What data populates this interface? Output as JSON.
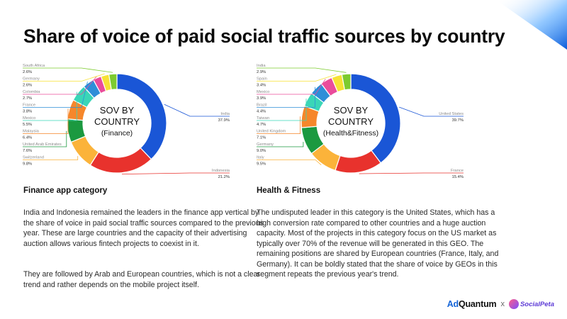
{
  "page": {
    "title": "Share of voice of paid social traffic sources by country"
  },
  "finance": {
    "section_title": "Finance app category",
    "paragraphs": [
      "India and Indonesia remained the leaders in the finance app vertical by the share of voice in paid social traffic sources compared to the previous year. These are large countries and the capacity of their advertising auction allows various fintech projects to coexist in it.",
      "They are followed by Arab and European countries, which is not a clear trend and rather depends on the mobile project itself."
    ]
  },
  "health": {
    "section_title": "Health & Fitness",
    "paragraphs": [
      "The undisputed leader in this category is the United States, which has a high conversion rate compared to other countries and a huge auction capacity. Most of the projects in this category focus on the US market as typically over 70% of the revenue will be generated in this GEO. The remaining positions are shared by European countries (France, Italy, and Germany). It can be boldly stated that the share of voice by GEOs in this segment repeats the previous year's trend."
    ]
  },
  "footer": {
    "brand1_prefix": "Ad",
    "brand1_suffix": "Quantum",
    "separator": "x",
    "brand2": "SocialPeta"
  },
  "chart_data": [
    {
      "type": "pie",
      "center_label": [
        "SOV BY",
        "COUNTRY",
        "(Finance)"
      ],
      "slices": [
        {
          "label": "India",
          "value": 37.9,
          "text": "37.9%",
          "color": "#1a56d6"
        },
        {
          "label": "Indonesia",
          "value": 21.2,
          "text": "21.2%",
          "color": "#e8322d"
        },
        {
          "label": "Switzerland",
          "value": 9.8,
          "text": "9.8%",
          "color": "#fbb33a"
        },
        {
          "label": "United Arab Emirates",
          "value": 7.6,
          "text": "7.6%",
          "color": "#1b9940"
        },
        {
          "label": "Malaysia",
          "value": 6.4,
          "text": "6.4%",
          "color": "#f6872b"
        },
        {
          "label": "Mexico",
          "value": 5.5,
          "text": "5.5%",
          "color": "#3ad6b7"
        },
        {
          "label": "France",
          "value": 3.8,
          "text": "3.8%",
          "color": "#2e8ed8"
        },
        {
          "label": "Colombia",
          "value": 2.7,
          "text": "2.7%",
          "color": "#ea4c9b"
        },
        {
          "label": "Germany",
          "value": 2.6,
          "text": "2.6%",
          "color": "#f7e234"
        },
        {
          "label": "South Africa",
          "value": 2.6,
          "text": "2.6%",
          "color": "#7dcb2f"
        }
      ]
    },
    {
      "type": "pie",
      "center_label": [
        "SOV BY",
        "COUNTRY",
        "(Health&Fitness)"
      ],
      "slices": [
        {
          "label": "United States",
          "value": 39.7,
          "text": "39.7%",
          "color": "#1a56d6"
        },
        {
          "label": "France",
          "value": 15.4,
          "text": "15.4%",
          "color": "#e8322d"
        },
        {
          "label": "Italy",
          "value": 9.5,
          "text": "9.5%",
          "color": "#fbb33a"
        },
        {
          "label": "Germany",
          "value": 9.0,
          "text": "9.0%",
          "color": "#1b9940"
        },
        {
          "label": "United Kingdom",
          "value": 7.1,
          "text": "7.1%",
          "color": "#f6872b"
        },
        {
          "label": "Taiwan",
          "value": 4.7,
          "text": "4.7%",
          "color": "#3ad6b7"
        },
        {
          "label": "Brazil",
          "value": 4.4,
          "text": "4.4%",
          "color": "#2e8ed8"
        },
        {
          "label": "Mexico",
          "value": 3.9,
          "text": "3.9%",
          "color": "#ea4c9b"
        },
        {
          "label": "Spain",
          "value": 3.4,
          "text": "3.4%",
          "color": "#f7e234"
        },
        {
          "label": "India",
          "value": 2.9,
          "text": "2.9%",
          "color": "#7dcb2f"
        }
      ]
    }
  ]
}
